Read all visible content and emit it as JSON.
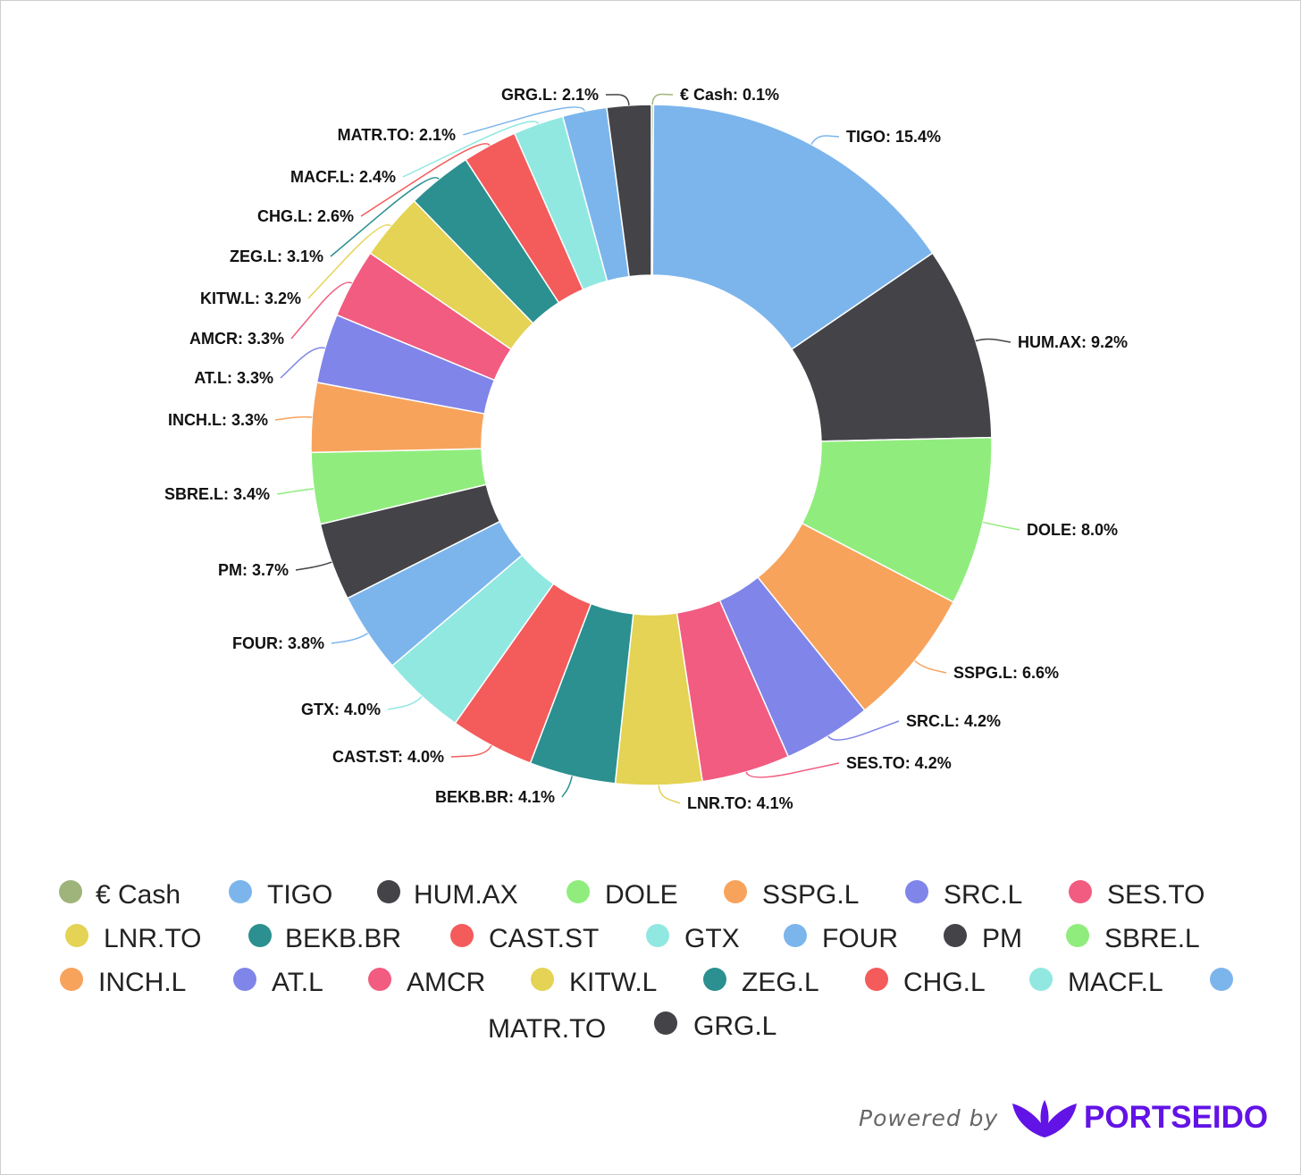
{
  "chart_data": {
    "type": "pie",
    "donut": true,
    "start_angle_deg": 0,
    "legend_position": "bottom",
    "slices": [
      {
        "name": "€ Cash",
        "label": "€ Cash: 0.1%",
        "value": 0.1,
        "color": "#9fb47a"
      },
      {
        "name": "TIGO",
        "label": "TIGO: 15.4%",
        "value": 15.4,
        "color": "#7cb5ec"
      },
      {
        "name": "HUM.AX",
        "label": "HUM.AX: 9.2%",
        "value": 9.2,
        "color": "#434348"
      },
      {
        "name": "DOLE",
        "label": "DOLE: 8.0%",
        "value": 8.0,
        "color": "#90ed7d"
      },
      {
        "name": "SSPG.L",
        "label": "SSPG.L: 6.6%",
        "value": 6.6,
        "color": "#f7a35c"
      },
      {
        "name": "SRC.L",
        "label": "SRC.L: 4.2%",
        "value": 4.2,
        "color": "#8085e9"
      },
      {
        "name": "SES.TO",
        "label": "SES.TO: 4.2%",
        "value": 4.2,
        "color": "#f15c80"
      },
      {
        "name": "LNR.TO",
        "label": "LNR.TO: 4.1%",
        "value": 4.1,
        "color": "#e4d354"
      },
      {
        "name": "BEKB.BR",
        "label": "BEKB.BR: 4.1%",
        "value": 4.1,
        "color": "#2b908f"
      },
      {
        "name": "CAST.ST",
        "label": "CAST.ST: 4.0%",
        "value": 4.0,
        "color": "#f45b5b"
      },
      {
        "name": "GTX",
        "label": "GTX: 4.0%",
        "value": 4.0,
        "color": "#91e8e1"
      },
      {
        "name": "FOUR",
        "label": "FOUR: 3.8%",
        "value": 3.8,
        "color": "#7cb5ec"
      },
      {
        "name": "PM",
        "label": "PM: 3.7%",
        "value": 3.7,
        "color": "#434348"
      },
      {
        "name": "SBRE.L",
        "label": "SBRE.L: 3.4%",
        "value": 3.4,
        "color": "#90ed7d"
      },
      {
        "name": "INCH.L",
        "label": "INCH.L: 3.3%",
        "value": 3.3,
        "color": "#f7a35c"
      },
      {
        "name": "AT.L",
        "label": "AT.L: 3.3%",
        "value": 3.3,
        "color": "#8085e9"
      },
      {
        "name": "AMCR",
        "label": "AMCR: 3.3%",
        "value": 3.3,
        "color": "#f15c80"
      },
      {
        "name": "KITW.L",
        "label": "KITW.L: 3.2%",
        "value": 3.2,
        "color": "#e4d354"
      },
      {
        "name": "ZEG.L",
        "label": "ZEG.L: 3.1%",
        "value": 3.1,
        "color": "#2b908f"
      },
      {
        "name": "CHG.L",
        "label": "CHG.L: 2.6%",
        "value": 2.6,
        "color": "#f45b5b"
      },
      {
        "name": "MACF.L",
        "label": "MACF.L: 2.4%",
        "value": 2.4,
        "color": "#91e8e1"
      },
      {
        "name": "MATR.TO",
        "label": "MATR.TO: 2.1%",
        "value": 2.1,
        "color": "#7cb5ec"
      },
      {
        "name": "GRG.L",
        "label": "GRG.L: 2.1%",
        "value": 2.1,
        "color": "#434348"
      }
    ]
  },
  "footer": {
    "powered_by": "Powered by",
    "brand_name": "PORTSEIDO",
    "brand_color": "#6213e6"
  }
}
